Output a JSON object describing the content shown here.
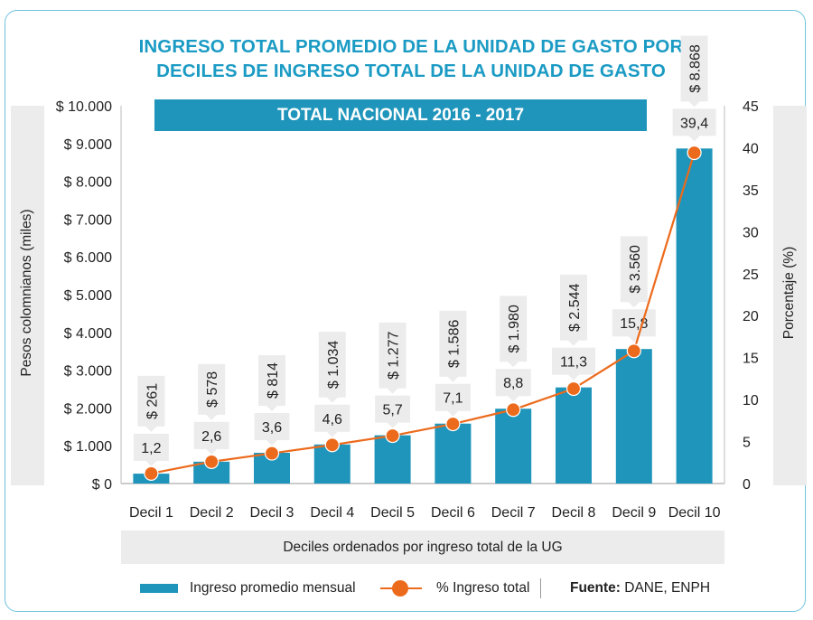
{
  "title_line1": "INGRESO TOTAL PROMEDIO DE LA UNIDAD DE GASTO POR",
  "title_line2": "DECILES DE INGRESO TOTAL DE LA UNIDAD DE GASTO",
  "subtitle": "TOTAL NACIONAL 2016 - 2017",
  "legend": {
    "bar_label": "Ingreso promedio mensual",
    "line_label": "% Ingreso total",
    "source_label": "Fuente:",
    "source_value": " DANE, ENPH"
  },
  "colors": {
    "bar": "#1f95bb",
    "line": "#ec6a1b",
    "title": "#1b9bc4",
    "label_bg": "#ececec"
  },
  "chart_data": {
    "type": "bar",
    "title": "INGRESO TOTAL PROMEDIO DE LA UNIDAD DE GASTO POR DECILES DE INGRESO TOTAL DE LA UNIDAD DE GASTO",
    "subtitle": "TOTAL NACIONAL 2016 - 2017",
    "xlabel": "Deciles ordenados por ingreso total de la UG",
    "ylabel": "Pesos colomnianos (miles)",
    "y2label": "Porcentaje (%)",
    "categories": [
      "Decil 1",
      "Decil 2",
      "Decil 3",
      "Decil 4",
      "Decil 5",
      "Decil 6",
      "Decil 7",
      "Decil 8",
      "Decil 9",
      "Decil 10"
    ],
    "ylim": [
      0,
      10000
    ],
    "y2lim": [
      0,
      45
    ],
    "yticks": [
      "$ 0",
      "$ 1.000",
      "$ 2.000",
      "$ 3.000",
      "$ 4.000",
      "$ 5.000",
      "$ 6.000",
      "$ 7.000",
      "$ 8.000",
      "$ 9.000",
      "$ 10.000"
    ],
    "y2ticks": [
      "0",
      "5",
      "10",
      "15",
      "20",
      "25",
      "30",
      "35",
      "40",
      "45"
    ],
    "series": [
      {
        "name": "Ingreso promedio mensual",
        "type": "bar",
        "axis": "left",
        "values": [
          261,
          578,
          814,
          1034,
          1277,
          1586,
          1980,
          2544,
          3560,
          8868
        ],
        "labels": [
          "$ 261",
          "$ 578",
          "$ 814",
          "$ 1.034",
          "$ 1.277",
          "$ 1.586",
          "$ 1.980",
          "$ 2.544",
          "$ 3.560",
          "$ 8.868"
        ]
      },
      {
        "name": "% Ingreso total",
        "type": "line",
        "axis": "right",
        "values": [
          1.2,
          2.6,
          3.6,
          4.6,
          5.7,
          7.1,
          8.8,
          11.3,
          15.8,
          39.4
        ],
        "labels": [
          "1,2",
          "2,6",
          "3,6",
          "4,6",
          "5,7",
          "7,1",
          "8,8",
          "11,3",
          "15,8",
          "39,4"
        ]
      }
    ],
    "grid": false,
    "legend_position": "bottom"
  }
}
